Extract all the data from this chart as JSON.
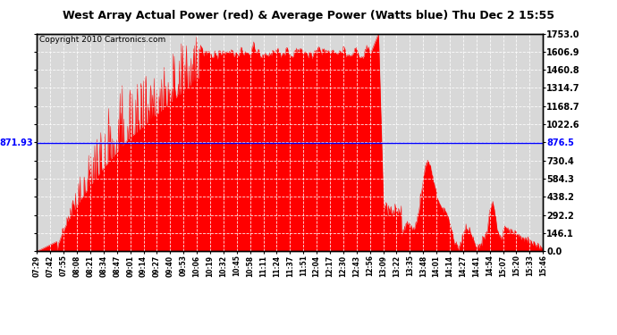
{
  "title": "West Array Actual Power (red) & Average Power (Watts blue) Thu Dec 2 15:55",
  "copyright": "Copyright 2010 Cartronics.com",
  "avg_power": 871.93,
  "ymax": 1753.0,
  "ymin": 0.0,
  "yticks": [
    0.0,
    146.1,
    292.2,
    438.2,
    584.3,
    730.4,
    876.5,
    1022.6,
    1168.7,
    1314.7,
    1460.8,
    1606.9,
    1753.0
  ],
  "ytick_labels_right": [
    "0.0",
    "146.1",
    "292.2",
    "438.2",
    "584.3",
    "730.4",
    "876.5",
    "1022.6",
    "1168.7",
    "1314.7",
    "1460.8",
    "1606.9",
    "1753.0"
  ],
  "background_color": "#ffffff",
  "fill_color": "#ff0000",
  "avg_line_color": "#0000ff",
  "plot_bg_color": "#d8d8d8",
  "title_fontsize": 9,
  "copyright_fontsize": 6.5,
  "x_labels": [
    "07:29",
    "07:42",
    "07:55",
    "08:08",
    "08:21",
    "08:34",
    "08:47",
    "09:01",
    "09:14",
    "09:27",
    "09:40",
    "09:53",
    "10:06",
    "10:19",
    "10:32",
    "10:45",
    "10:58",
    "11:11",
    "11:24",
    "11:37",
    "11:51",
    "12:04",
    "12:17",
    "12:30",
    "12:43",
    "12:56",
    "13:09",
    "13:22",
    "13:35",
    "13:48",
    "14:01",
    "14:14",
    "14:27",
    "14:41",
    "14:54",
    "15:07",
    "15:20",
    "15:33",
    "15:46"
  ]
}
